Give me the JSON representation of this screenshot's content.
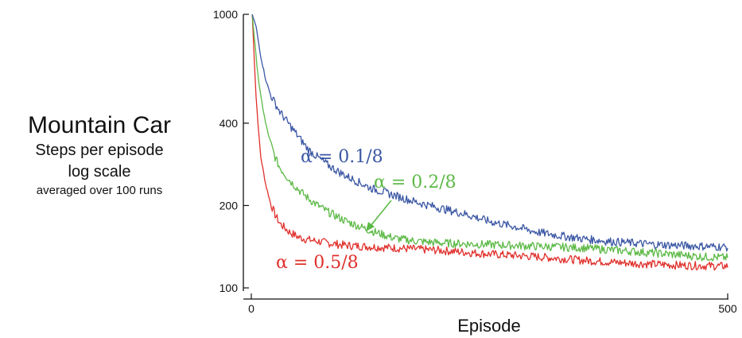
{
  "side_text": {
    "title": "Mountain Car",
    "line1": "Steps per episode",
    "line2": "log scale",
    "line3": "averaged over 100 runs"
  },
  "chart_data": {
    "type": "line",
    "title": "Mountain Car",
    "xlabel": "Episode",
    "ylabel": "",
    "yscale": "log",
    "xlim": [
      0,
      500
    ],
    "ylim": [
      95,
      1000
    ],
    "x_ticks": [
      {
        "value": 0,
        "label": "0"
      },
      {
        "value": 500,
        "label": "500"
      }
    ],
    "y_ticks": [
      {
        "value": 1000,
        "label": "1000"
      },
      {
        "value": 400,
        "label": "400"
      },
      {
        "value": 200,
        "label": "200"
      },
      {
        "value": 100,
        "label": "100"
      }
    ],
    "grid": false,
    "series": [
      {
        "name": "α = 0.1/8",
        "color": "#3b57a4",
        "points": [
          [
            1,
            1000
          ],
          [
            5,
            900
          ],
          [
            10,
            700
          ],
          [
            15,
            580
          ],
          [
            20,
            510
          ],
          [
            30,
            440
          ],
          [
            40,
            395
          ],
          [
            50,
            355
          ],
          [
            60,
            320
          ],
          [
            70,
            300
          ],
          [
            80,
            282
          ],
          [
            90,
            268
          ],
          [
            100,
            256
          ],
          [
            125,
            232
          ],
          [
            150,
            218
          ],
          [
            175,
            205
          ],
          [
            200,
            195
          ],
          [
            225,
            186
          ],
          [
            250,
            175
          ],
          [
            275,
            168
          ],
          [
            300,
            160
          ],
          [
            325,
            155
          ],
          [
            350,
            151
          ],
          [
            375,
            148
          ],
          [
            400,
            146
          ],
          [
            425,
            144
          ],
          [
            450,
            143
          ],
          [
            475,
            142
          ],
          [
            500,
            141
          ]
        ]
      },
      {
        "name": "α = 0.2/8",
        "color": "#5cb946",
        "points": [
          [
            1,
            1000
          ],
          [
            5,
            700
          ],
          [
            8,
            560
          ],
          [
            10,
            500
          ],
          [
            15,
            400
          ],
          [
            20,
            340
          ],
          [
            25,
            300
          ],
          [
            30,
            275
          ],
          [
            40,
            248
          ],
          [
            50,
            228
          ],
          [
            60,
            212
          ],
          [
            70,
            200
          ],
          [
            80,
            190
          ],
          [
            100,
            175
          ],
          [
            125,
            162
          ],
          [
            150,
            152
          ],
          [
            175,
            148
          ],
          [
            200,
            146
          ],
          [
            225,
            145
          ],
          [
            250,
            144
          ],
          [
            300,
            142
          ],
          [
            350,
            140
          ],
          [
            400,
            136
          ],
          [
            450,
            132
          ],
          [
            475,
            130
          ],
          [
            500,
            129
          ]
        ]
      },
      {
        "name": "α = 0.5/8",
        "color": "#e0302b",
        "points": [
          [
            1,
            1000
          ],
          [
            3,
            700
          ],
          [
            5,
            500
          ],
          [
            8,
            360
          ],
          [
            10,
            300
          ],
          [
            15,
            240
          ],
          [
            20,
            205
          ],
          [
            25,
            185
          ],
          [
            30,
            172
          ],
          [
            40,
            160
          ],
          [
            50,
            153
          ],
          [
            60,
            150
          ],
          [
            80,
            146
          ],
          [
            100,
            143
          ],
          [
            150,
            140
          ],
          [
            200,
            137
          ],
          [
            250,
            133
          ],
          [
            300,
            130
          ],
          [
            350,
            126
          ],
          [
            400,
            123
          ],
          [
            450,
            121
          ],
          [
            500,
            120
          ]
        ]
      }
    ],
    "annotations": [
      {
        "text": "α = 0.1/8",
        "color": "#3b57a4"
      },
      {
        "text": "α = 0.2/8",
        "color": "#5cb946",
        "arrow": true
      },
      {
        "text": "α = 0.5/8",
        "color": "#e0302b"
      }
    ]
  }
}
